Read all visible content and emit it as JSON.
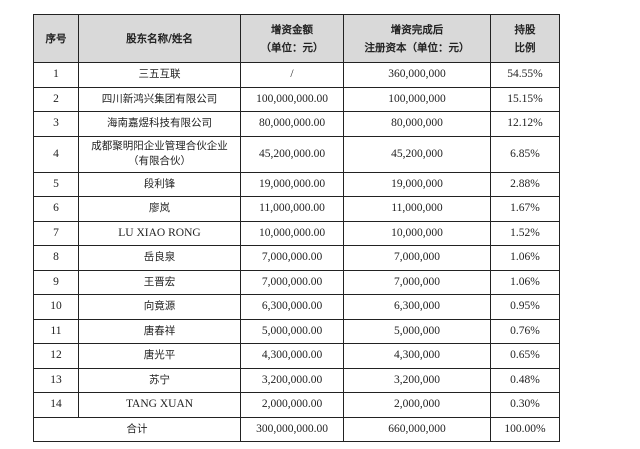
{
  "header": {
    "index": "序号",
    "name": "股东名称/姓名",
    "increase_l1": "增资金额",
    "increase_l2": "（单位：元）",
    "after_l1": "增资完成后",
    "after_l2": "注册资本（单位：元）",
    "ratio_l1": "持股",
    "ratio_l2": "比例"
  },
  "rows": [
    {
      "index": "1",
      "name": "三五互联",
      "increase": "/",
      "after": "360,000,000",
      "ratio": "54.55%"
    },
    {
      "index": "2",
      "name": "四川新鸿兴集团有限公司",
      "increase": "100,000,000.00",
      "after": "100,000,000",
      "ratio": "15.15%"
    },
    {
      "index": "3",
      "name": "海南嘉煜科技有限公司",
      "increase": "80,000,000.00",
      "after": "80,000,000",
      "ratio": "12.12%"
    },
    {
      "index": "4",
      "name": "成都聚明阳企业管理合伙企业",
      "name2": "（有限合伙）",
      "increase": "45,200,000.00",
      "after": "45,200,000",
      "ratio": "6.85%"
    },
    {
      "index": "5",
      "name": "段利锋",
      "increase": "19,000,000.00",
      "after": "19,000,000",
      "ratio": "2.88%"
    },
    {
      "index": "6",
      "name": "廖岚",
      "increase": "11,000,000.00",
      "after": "11,000,000",
      "ratio": "1.67%"
    },
    {
      "index": "7",
      "name": "LU XIAO RONG",
      "increase": "10,000,000.00",
      "after": "10,000,000",
      "ratio": "1.52%"
    },
    {
      "index": "8",
      "name": "岳良泉",
      "increase": "7,000,000.00",
      "after": "7,000,000",
      "ratio": "1.06%"
    },
    {
      "index": "9",
      "name": "王晋宏",
      "increase": "7,000,000.00",
      "after": "7,000,000",
      "ratio": "1.06%"
    },
    {
      "index": "10",
      "name": "向竟源",
      "increase": "6,300,000.00",
      "after": "6,300,000",
      "ratio": "0.95%"
    },
    {
      "index": "11",
      "name": "唐春祥",
      "increase": "5,000,000.00",
      "after": "5,000,000",
      "ratio": "0.76%"
    },
    {
      "index": "12",
      "name": "唐光平",
      "increase": "4,300,000.00",
      "after": "4,300,000",
      "ratio": "0.65%"
    },
    {
      "index": "13",
      "name": "苏宁",
      "increase": "3,200,000.00",
      "after": "3,200,000",
      "ratio": "0.48%"
    },
    {
      "index": "14",
      "name": "TANG XUAN",
      "increase": "2,000,000.00",
      "after": "2,000,000",
      "ratio": "0.30%"
    }
  ],
  "total": {
    "label": "合计",
    "increase": "300,000,000.00",
    "after": "660,000,000",
    "ratio": "100.00%"
  },
  "colors": {
    "header_bg": "#d9d9d9",
    "border": "#222222"
  }
}
